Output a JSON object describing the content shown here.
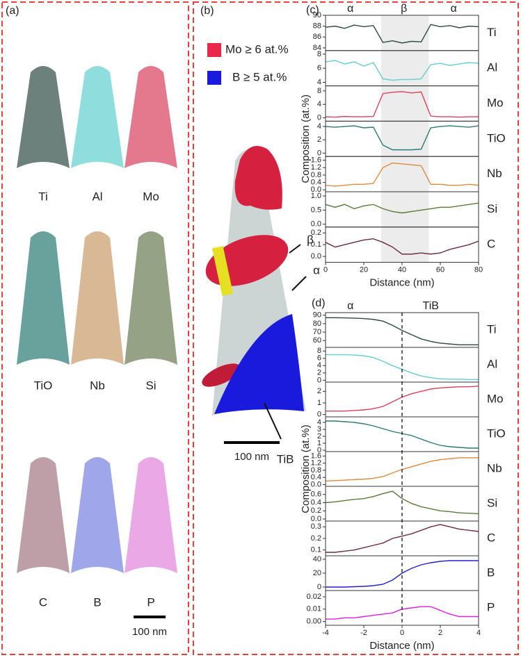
{
  "panel_a": {
    "label": "(a)",
    "maps": [
      {
        "name": "Ti",
        "color": "#2d4a45"
      },
      {
        "name": "Al",
        "color": "#5fcfcf"
      },
      {
        "name": "Mo",
        "color": "#d9405e"
      },
      {
        "name": "TiO",
        "color": "#2a7a72"
      },
      {
        "name": "Nb",
        "color": "#c99a6a"
      },
      {
        "name": "Si",
        "color": "#6a7a52"
      },
      {
        "name": "C",
        "color": "#6e2a3e"
      },
      {
        "name": "B",
        "color": "#2a3ad0"
      },
      {
        "name": "P",
        "color": "#d040c8"
      }
    ],
    "scale_bar": "100 nm"
  },
  "panel_b": {
    "label": "(b)",
    "legend": [
      {
        "text": "Mo ≥ 6 at.%",
        "color": "#e8274a"
      },
      {
        "text": "B ≥ 5 at.%",
        "color": "#1a1adc"
      }
    ],
    "labels": [
      "β",
      "α",
      "TiB"
    ],
    "scale_bar": "100 nm"
  },
  "chart_data": [
    {
      "type": "line",
      "label": "(c)",
      "xlabel": "Distance (nm)",
      "ylabel": "Composition (at.%)",
      "xlim": [
        0,
        80
      ],
      "xticks": [
        0,
        20,
        40,
        60,
        80
      ],
      "highlight_range": [
        29,
        54
      ],
      "annotations": [
        {
          "text": "α",
          "x": 13
        },
        {
          "text": "β",
          "x": 41
        },
        {
          "text": "α",
          "x": 67
        }
      ],
      "x": [
        0,
        5,
        10,
        15,
        20,
        25,
        30,
        35,
        40,
        45,
        50,
        55,
        60,
        65,
        70,
        75,
        80
      ],
      "subplots": [
        {
          "name": "Ti",
          "color": "#2d4a45",
          "ylim": [
            83.5,
            90
          ],
          "yticks": [
            84,
            86,
            88,
            90
          ],
          "values": [
            87.8,
            88.0,
            87.6,
            88.2,
            87.9,
            88.1,
            85.0,
            85.3,
            84.9,
            85.2,
            85.1,
            88.3,
            87.9,
            88.1,
            87.7,
            88.0,
            87.9
          ]
        },
        {
          "name": "Al",
          "color": "#5fcfcf",
          "ylim": [
            3.5,
            8.5
          ],
          "yticks": [
            4,
            6,
            8
          ],
          "values": [
            6.9,
            7.1,
            6.6,
            6.9,
            6.3,
            6.8,
            4.5,
            4.3,
            4.4,
            4.4,
            4.5,
            6.5,
            6.7,
            6.4,
            6.6,
            6.8,
            6.7
          ]
        },
        {
          "name": "Mo",
          "color": "#e0405a",
          "ylim": [
            -1,
            9.5
          ],
          "yticks": [
            0,
            4,
            8
          ],
          "values": [
            0.3,
            0.2,
            0.4,
            0.3,
            0.3,
            0.4,
            7.2,
            7.6,
            7.8,
            7.4,
            7.7,
            0.5,
            0.3,
            0.3,
            0.2,
            0.3,
            0.3
          ]
        },
        {
          "name": "TiO",
          "color": "#2a7a72",
          "ylim": [
            -0.5,
            4.8
          ],
          "yticks": [
            0,
            2,
            4
          ],
          "values": [
            4.0,
            3.9,
            4.0,
            4.1,
            3.8,
            3.9,
            1.2,
            0.5,
            0.5,
            0.5,
            0.6,
            3.8,
            4.0,
            4.1,
            4.0,
            3.9,
            4.1
          ]
        },
        {
          "name": "Nb",
          "color": "#e08a3c",
          "ylim": [
            -0.1,
            1.8
          ],
          "yticks": [
            {
              "value": 0,
              "label": "0.0"
            },
            0.4,
            0.8,
            1.2,
            1.6
          ],
          "values": [
            0.25,
            0.2,
            0.25,
            0.3,
            0.3,
            0.35,
            1.2,
            1.45,
            1.4,
            1.35,
            1.3,
            0.3,
            0.3,
            0.25,
            0.25,
            0.3,
            0.25
          ]
        },
        {
          "name": "Si",
          "color": "#5a7a3a",
          "ylim": [
            -0.1,
            1.15
          ],
          "yticks": [
            {
              "value": 0,
              "label": "0.0"
            },
            0.5,
            {
              "value": 1,
              "label": "1.0"
            }
          ],
          "values": [
            0.7,
            0.6,
            0.7,
            0.55,
            0.65,
            0.7,
            0.55,
            0.45,
            0.4,
            0.45,
            0.5,
            0.55,
            0.6,
            0.6,
            0.65,
            0.7,
            0.75
          ]
        },
        {
          "name": "C",
          "color": "#6e2a3e",
          "ylim": [
            -0.05,
            0.25
          ],
          "yticks": [
            {
              "value": 0,
              "label": "0.0"
            },
            0.1,
            0.2
          ],
          "values": [
            0.12,
            0.08,
            0.1,
            0.12,
            0.14,
            0.15,
            0.12,
            0.08,
            0.02,
            0.02,
            0.03,
            0.02,
            0.03,
            0.06,
            0.08,
            0.1,
            0.13
          ]
        }
      ]
    },
    {
      "type": "line",
      "label": "(d)",
      "xlabel": "Distance (nm)",
      "ylabel": "Composition (at.%)",
      "xlim": [
        -4,
        4
      ],
      "xticks": [
        -4,
        -2,
        0,
        2,
        4
      ],
      "vline": 0,
      "annotations": [
        {
          "text": "α",
          "x": -2.7
        },
        {
          "text": "TiB",
          "x": 1.5
        }
      ],
      "x": [
        -4,
        -3.5,
        -3,
        -2.5,
        -2,
        -1.5,
        -1,
        -0.5,
        0,
        0.5,
        1,
        1.5,
        2,
        2.5,
        3,
        3.5,
        4
      ],
      "subplots": [
        {
          "name": "Ti",
          "color": "#2d4a45",
          "ylim": [
            52,
            93
          ],
          "yticks": [
            60,
            70,
            80,
            90
          ],
          "values": [
            87,
            87,
            86.8,
            86.5,
            86,
            85,
            83,
            78,
            72,
            67,
            62,
            59,
            57,
            56,
            55,
            55,
            55
          ]
        },
        {
          "name": "Al",
          "color": "#5fcfcf",
          "ylim": [
            -0.5,
            9
          ],
          "yticks": [
            0,
            2,
            4,
            6,
            8
          ],
          "values": [
            7,
            7,
            7,
            6.9,
            6.7,
            6.2,
            5.2,
            4,
            3,
            2,
            1.2,
            0.7,
            0.4,
            0.3,
            0.3,
            0.2,
            0.2
          ]
        },
        {
          "name": "Mo",
          "color": "#e0405a",
          "ylim": [
            -0.2,
            2.8
          ],
          "yticks": [
            0,
            1,
            2
          ],
          "values": [
            0.3,
            0.3,
            0.3,
            0.35,
            0.4,
            0.5,
            0.7,
            1.1,
            1.5,
            1.8,
            2.0,
            2.2,
            2.3,
            2.35,
            2.4,
            2.4,
            2.45
          ]
        },
        {
          "name": "TiO",
          "color": "#2a7a72",
          "ylim": [
            -0.2,
            4.8
          ],
          "yticks": [
            0,
            1,
            2,
            3,
            4
          ],
          "values": [
            4.2,
            4.2,
            4.1,
            4,
            3.8,
            3.5,
            3.1,
            2.7,
            2.4,
            2.1,
            1.6,
            1.1,
            0.7,
            0.5,
            0.4,
            0.3,
            0.3
          ]
        },
        {
          "name": "Nb",
          "color": "#e08a3c",
          "ylim": [
            -0.1,
            1.85
          ],
          "yticks": [
            {
              "value": 0,
              "label": "0.0"
            },
            0.4,
            0.8,
            1.2,
            1.6
          ],
          "values": [
            0.2,
            0.22,
            0.25,
            0.28,
            0.3,
            0.35,
            0.45,
            0.65,
            0.85,
            1.0,
            1.15,
            1.3,
            1.4,
            1.45,
            1.5,
            1.5,
            1.5
          ]
        },
        {
          "name": "Si",
          "color": "#5a7a3a",
          "ylim": [
            -0.05,
            0.8
          ],
          "yticks": [
            {
              "value": 0,
              "label": "0.0"
            },
            0.2,
            0.4,
            0.6
          ],
          "values": [
            0.4,
            0.42,
            0.45,
            0.48,
            0.5,
            0.55,
            0.62,
            0.68,
            0.5,
            0.38,
            0.3,
            0.25,
            0.2,
            0.18,
            0.15,
            0.14,
            0.13
          ]
        },
        {
          "name": "C",
          "color": "#6e2a3e",
          "ylim": [
            0.05,
            0.35
          ],
          "yticks": [
            0.1,
            0.2,
            0.3
          ],
          "values": [
            0.08,
            0.08,
            0.09,
            0.1,
            0.12,
            0.14,
            0.16,
            0.2,
            0.22,
            0.24,
            0.27,
            0.3,
            0.32,
            0.3,
            0.28,
            0.27,
            0.26
          ]
        },
        {
          "name": "B",
          "color": "#2020d0",
          "ylim": [
            -5,
            45
          ],
          "yticks": [
            0,
            20,
            40
          ],
          "values": [
            0,
            0,
            0,
            0.5,
            1,
            2,
            4,
            10,
            20,
            27,
            32,
            35,
            37,
            38,
            38,
            38,
            38
          ]
        },
        {
          "name": "P",
          "color": "#e020e0",
          "ylim": [
            -0.003,
            0.025
          ],
          "yticks": [
            {
              "value": 0,
              "label": "0.00"
            },
            0.01,
            0.02
          ],
          "values": [
            0.002,
            0.002,
            0.003,
            0.003,
            0.004,
            0.005,
            0.006,
            0.007,
            0.01,
            0.011,
            0.012,
            0.012,
            0.009,
            0.006,
            0.004,
            0.004,
            0.004
          ]
        }
      ]
    }
  ]
}
